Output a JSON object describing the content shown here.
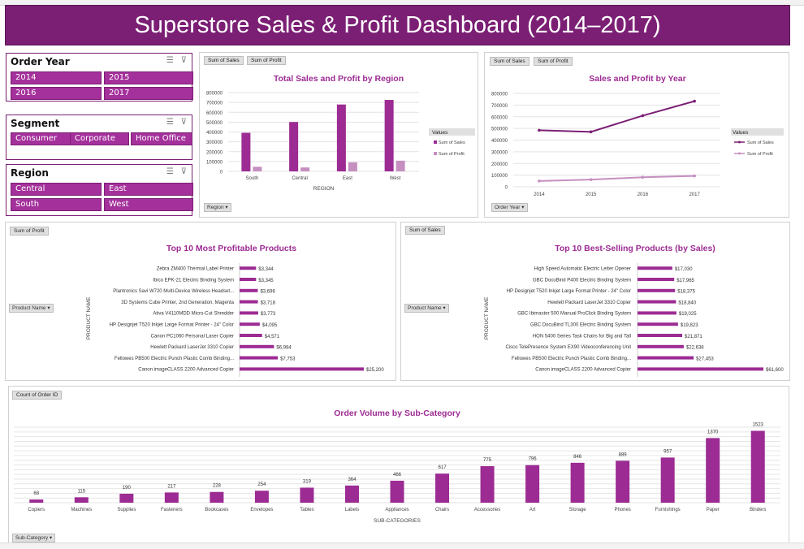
{
  "title": "Superstore Sales & Profit Dashboard (2014–2017)",
  "colors": {
    "header_bg": "#7b1f74",
    "sales": "#9c2b93",
    "profit": "#c58fc0",
    "slicer_button": "#a4319b"
  },
  "slicers": {
    "order_year": {
      "title": "Order Year",
      "items": [
        "2014",
        "2015",
        "2016",
        "2017"
      ]
    },
    "segment": {
      "title": "Segment",
      "items": [
        "Consumer",
        "Corporate",
        "Home Office"
      ]
    },
    "region": {
      "title": "Region",
      "items": [
        "Central",
        "East",
        "South",
        "West"
      ]
    }
  },
  "chart_region": {
    "field_tags": [
      "Sum of Sales",
      "Sum of Profit"
    ],
    "filter_label": "Region",
    "legend_title": "Values"
  },
  "chart_year": {
    "field_tags": [
      "Sum of Sales",
      "Sum of Profit"
    ],
    "filter_label": "Order Year",
    "legend_title": "Values"
  },
  "chart_profit_products": {
    "field_tags": [
      "Sum of Profit"
    ],
    "filter_label": "Product Name"
  },
  "chart_sales_products": {
    "field_tags": [
      "Sum of Sales"
    ],
    "filter_label": "Product Name"
  },
  "chart_subcat": {
    "field_tags": [
      "Count of Order ID"
    ],
    "filter_label": "Sub-Category"
  },
  "chart_data": [
    {
      "type": "bar",
      "title": "Total Sales and Profit by Region",
      "xlabel": "REGION",
      "ylabel": "",
      "categories": [
        "South",
        "Central",
        "East",
        "West"
      ],
      "series": [
        {
          "name": "Sum of Sales",
          "values": [
            391722,
            501240,
            678781,
            725458
          ]
        },
        {
          "name": "Sum of Profit",
          "values": [
            46749,
            39706,
            91523,
            108418
          ]
        }
      ],
      "ylim": [
        0,
        800000
      ],
      "yticks": [
        0,
        100000,
        200000,
        300000,
        400000,
        500000,
        600000,
        700000,
        800000
      ],
      "grid": true,
      "legend": "right"
    },
    {
      "type": "line",
      "title": "Sales and Profit by Year",
      "xlabel": "",
      "ylabel": "",
      "categories": [
        "2014",
        "2015",
        "2016",
        "2017"
      ],
      "series": [
        {
          "name": "Sum of Sales",
          "values": [
            484247,
            470533,
            609206,
            733215
          ]
        },
        {
          "name": "Sum of Profit",
          "values": [
            49544,
            61619,
            81795,
            93439
          ]
        }
      ],
      "ylim": [
        0,
        800000
      ],
      "yticks": [
        0,
        100000,
        200000,
        300000,
        400000,
        500000,
        600000,
        700000,
        800000
      ],
      "grid": true,
      "legend": "right"
    },
    {
      "type": "bar",
      "orientation": "horizontal",
      "title": "Top 10 Most Profitable Products",
      "ylabel": "PRODUCT NAME",
      "categories": [
        "Zebra ZM400 Thermal Label Printer",
        "Ibico EPK-21 Electric Binding System",
        "Plantronics Savi W720 Multi-Device Wireless Headset...",
        "3D Systems Cube Printer, 2nd Generation, Magenta",
        "Ativa V4110MDD Micro-Cut Shredder",
        "HP Designjet T520 Inkjet Large Format Printer - 24\" Color",
        "Canon PC1060 Personal Laser Copier",
        "Hewlett Packard LaserJet 3310 Copier",
        "Fellowes PB500 Electric Punch Plastic Comb Binding...",
        "Canon imageCLASS 2200 Advanced Copier"
      ],
      "values": [
        3344,
        3345,
        3696,
        3718,
        3773,
        4095,
        4571,
        6984,
        7753,
        25200
      ],
      "value_labels": [
        "$3,344",
        "$3,345",
        "$3,696",
        "$3,718",
        "$3,773",
        "$4,095",
        "$4,571",
        "$6,984",
        "$7,753",
        "$25,200"
      ],
      "xlim": [
        0,
        25200
      ]
    },
    {
      "type": "bar",
      "orientation": "horizontal",
      "title": "Top 10 Best-Selling Products (by Sales)",
      "ylabel": "PRODUCT NAME",
      "categories": [
        "High Speed Automatic Electric Letter Opener",
        "GBC DocuBind P400 Electric Binding System",
        "HP Designjet T520 Inkjet Large Format Printer - 24\" Color",
        "Hewlett Packard LaserJet 3310 Copier",
        "GBC Ibimaster 500 Manual ProClick Binding System",
        "GBC DocuBind TL300 Electric Binding System",
        "HON 5400 Series Task Chairs for Big and Tall",
        "Cisco TelePresence System EX90 Videoconferencing Unit",
        "Fellowes PB500 Electric Punch Plastic Comb Binding...",
        "Canon imageCLASS 2200 Advanced Copier"
      ],
      "values": [
        17030,
        17965,
        18375,
        18840,
        19025,
        19823,
        21871,
        22638,
        27453,
        61600
      ],
      "value_labels": [
        "$17,030",
        "$17,965",
        "$18,375",
        "$18,840",
        "$19,025",
        "$19,823",
        "$21,871",
        "$22,638",
        "$27,453",
        "$61,600"
      ],
      "xlim": [
        0,
        61600
      ]
    },
    {
      "type": "bar",
      "title": "Order Volume by Sub-Category",
      "xlabel": "SUB-CATEGORIES",
      "ylabel": "",
      "categories": [
        "Copiers",
        "Machines",
        "Supplies",
        "Fasteners",
        "Bookcases",
        "Envelopes",
        "Tables",
        "Labels",
        "Appliances",
        "Chairs",
        "Accessories",
        "Art",
        "Storage",
        "Phones",
        "Furnishings",
        "Paper",
        "Binders"
      ],
      "values": [
        68,
        115,
        190,
        217,
        228,
        254,
        319,
        364,
        466,
        617,
        775,
        796,
        846,
        889,
        957,
        1370,
        1523
      ],
      "ylim": [
        0,
        1600
      ],
      "grid": true
    }
  ]
}
